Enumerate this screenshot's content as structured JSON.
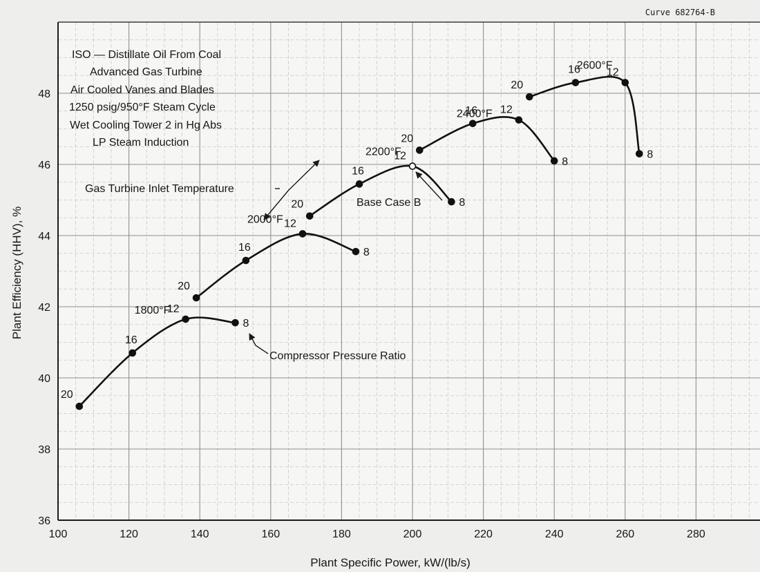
{
  "header": {
    "curve_id": "Curve 682764-B"
  },
  "chart_data": {
    "type": "line",
    "xlabel": "Plant Specific Power, kW/(lb/s)",
    "ylabel": "Plant Efficiency (HHV), %",
    "xlim": [
      100,
      300
    ],
    "ylim": [
      36,
      50
    ],
    "x_ticks": [
      100,
      120,
      140,
      160,
      180,
      200,
      220,
      240,
      260,
      280
    ],
    "y_ticks": [
      36,
      38,
      40,
      42,
      44,
      46,
      48
    ],
    "grid": true,
    "conditions": [
      "ISO — Distillate Oil From Coal",
      "Advanced Gas Turbine",
      "Air Cooled Vanes and Blades",
      "1250 psig/950°F Steam Cycle",
      "Wet Cooling Tower 2 in Hg Abs",
      "LP Steam Induction"
    ],
    "series": [
      {
        "name": "1800°F",
        "points": [
          {
            "pr": "20",
            "x": 106,
            "y": 39.2
          },
          {
            "pr": "16",
            "x": 121,
            "y": 40.7
          },
          {
            "pr": "12",
            "x": 136,
            "y": 41.65
          },
          {
            "pr": "8",
            "x": 150,
            "y": 41.55
          }
        ]
      },
      {
        "name": "2000°F",
        "points": [
          {
            "pr": "20",
            "x": 139,
            "y": 42.25
          },
          {
            "pr": "16",
            "x": 153,
            "y": 43.3
          },
          {
            "pr": "12",
            "x": 169,
            "y": 44.05
          },
          {
            "pr": "8",
            "x": 184,
            "y": 43.55
          }
        ]
      },
      {
        "name": "2200°F",
        "points": [
          {
            "pr": "20",
            "x": 171,
            "y": 44.55
          },
          {
            "pr": "16",
            "x": 185,
            "y": 45.45
          },
          {
            "pr": "12",
            "x": 200,
            "y": 45.95
          },
          {
            "pr": "8",
            "x": 211,
            "y": 44.95
          }
        ]
      },
      {
        "name": "2400°F",
        "points": [
          {
            "pr": "20",
            "x": 202,
            "y": 46.4
          },
          {
            "pr": "16",
            "x": 217,
            "y": 47.15
          },
          {
            "pr": "12",
            "x": 230,
            "y": 47.25
          },
          {
            "pr": "8",
            "x": 240,
            "y": 46.1
          }
        ]
      },
      {
        "name": "2600°F",
        "points": [
          {
            "pr": "20",
            "x": 233,
            "y": 47.9
          },
          {
            "pr": "16",
            "x": 246,
            "y": 48.3
          },
          {
            "pr": "12",
            "x": 260,
            "y": 48.3
          },
          {
            "pr": "8",
            "x": 264,
            "y": 46.3
          }
        ]
      }
    ],
    "annotations": {
      "inlet_temp": "Gas Turbine Inlet Temperature",
      "base_case": "Base Case B",
      "base_case_point": {
        "x": 200,
        "y": 45.95
      },
      "pressure_ratio": "Compressor Pressure Ratio"
    }
  }
}
